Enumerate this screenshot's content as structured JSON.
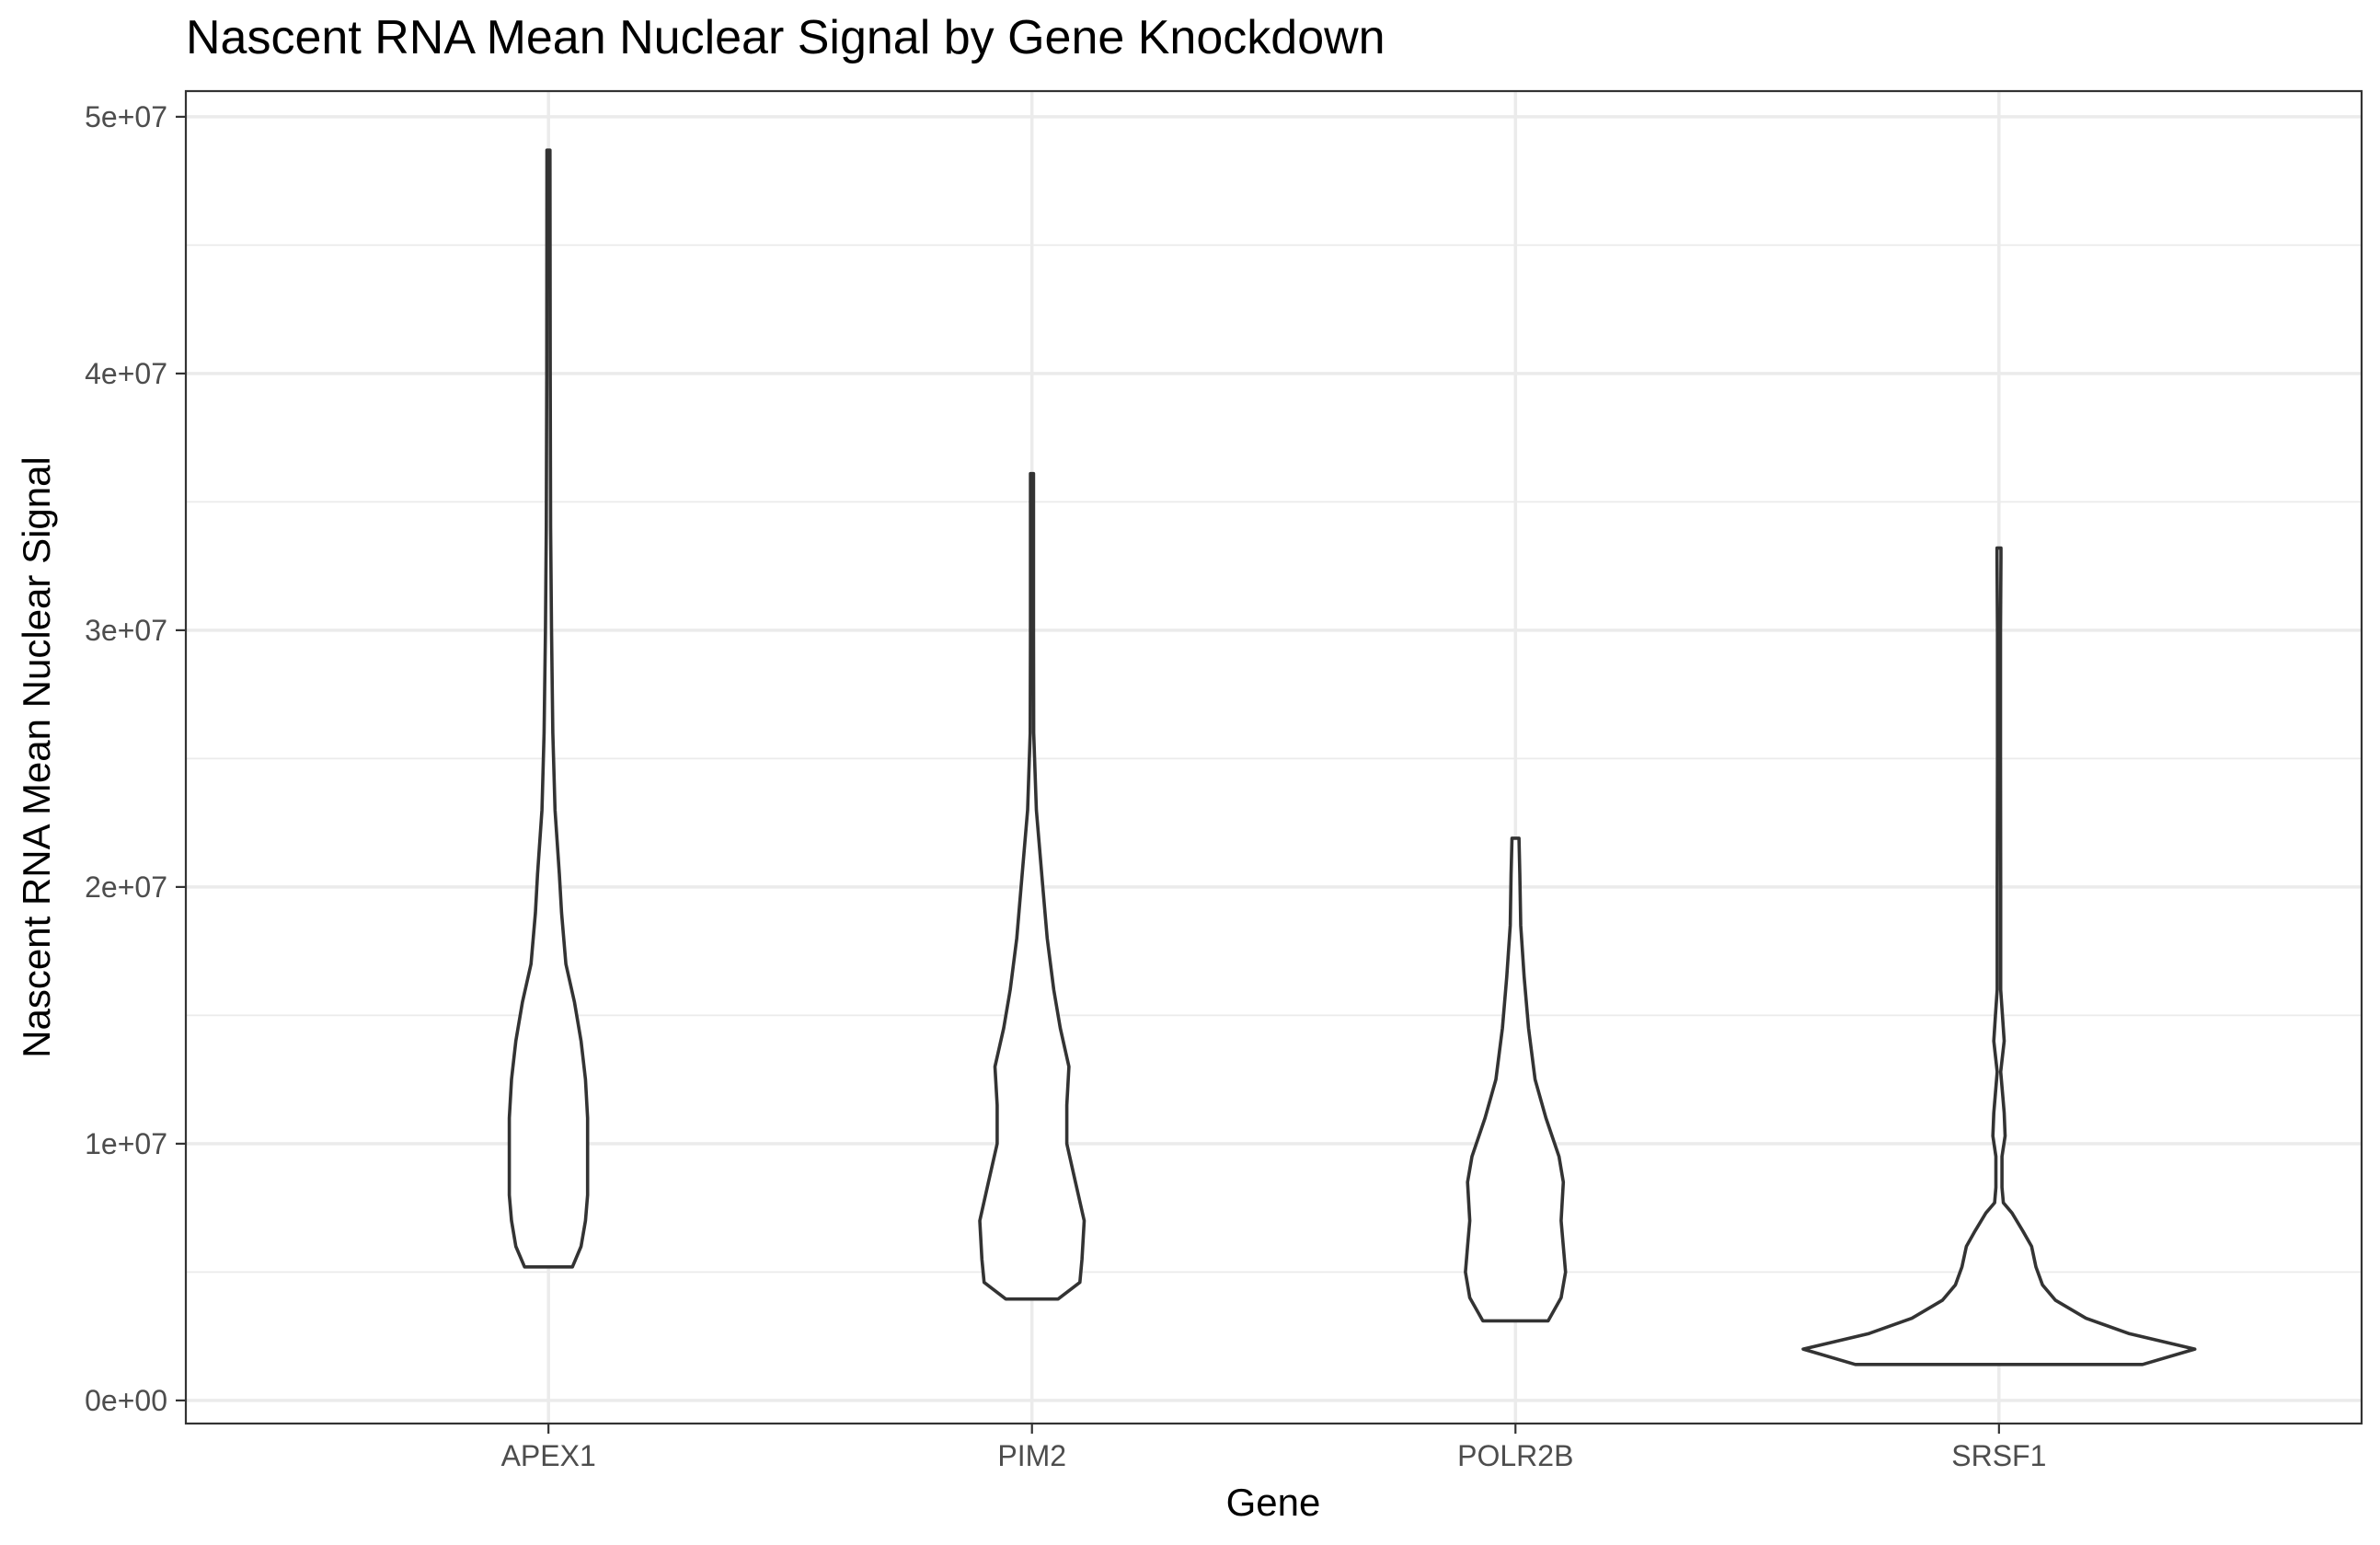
{
  "chart_data": {
    "type": "violin",
    "title": "Nascent RNA Mean Nuclear Signal by Gene Knockdown",
    "xlabel": "Gene",
    "ylabel": "Nascent RNA Mean Nuclear Signal",
    "categories": [
      "APEX1",
      "PIM2",
      "POLR2B",
      "SRSF1"
    ],
    "ylim": [
      -900000,
      51000000
    ],
    "y_ticks": [
      0,
      10000000,
      20000000,
      30000000,
      40000000,
      50000000
    ],
    "y_tick_labels": [
      "0e+00",
      "1e+07",
      "2e+07",
      "3e+07",
      "4e+07",
      "5e+07"
    ],
    "grid": true,
    "series": [
      {
        "category": "APEX1",
        "min": 5200000,
        "max": 48700000,
        "profile": [
          [
            5200000,
            0.055
          ],
          [
            6000000,
            0.075
          ],
          [
            7000000,
            0.085
          ],
          [
            8000000,
            0.09
          ],
          [
            9500000,
            0.09
          ],
          [
            11000000,
            0.09
          ],
          [
            12500000,
            0.085
          ],
          [
            14000000,
            0.075
          ],
          [
            15500000,
            0.06
          ],
          [
            17000000,
            0.04
          ],
          [
            19000000,
            0.03
          ],
          [
            20500000,
            0.025
          ],
          [
            23000000,
            0.015
          ],
          [
            26000000,
            0.01
          ],
          [
            30000000,
            0.007
          ],
          [
            34000000,
            0.005
          ],
          [
            40000000,
            0.004
          ],
          [
            48700000,
            0.0035
          ]
        ]
      },
      {
        "category": "PIM2",
        "min": 3950000,
        "max": 36100000,
        "profile": [
          [
            3950000,
            0.06
          ],
          [
            4600000,
            0.11
          ],
          [
            5500000,
            0.115
          ],
          [
            7000000,
            0.12
          ],
          [
            8500000,
            0.1
          ],
          [
            10000000,
            0.08
          ],
          [
            11500000,
            0.08
          ],
          [
            13000000,
            0.085
          ],
          [
            14500000,
            0.065
          ],
          [
            16000000,
            0.05
          ],
          [
            18000000,
            0.035
          ],
          [
            20000000,
            0.025
          ],
          [
            23000000,
            0.01
          ],
          [
            26000000,
            0.004
          ],
          [
            30000000,
            0.0035
          ],
          [
            36100000,
            0.0035
          ]
        ]
      },
      {
        "category": "POLR2B",
        "min": 3100000,
        "max": 21900000,
        "profile": [
          [
            3100000,
            0.075
          ],
          [
            4000000,
            0.105
          ],
          [
            5000000,
            0.115
          ],
          [
            6000000,
            0.11
          ],
          [
            7000000,
            0.105
          ],
          [
            8500000,
            0.11
          ],
          [
            9500000,
            0.1
          ],
          [
            11000000,
            0.07
          ],
          [
            12500000,
            0.045
          ],
          [
            14500000,
            0.03
          ],
          [
            16500000,
            0.02
          ],
          [
            18500000,
            0.012
          ],
          [
            20500000,
            0.01
          ],
          [
            21900000,
            0.008
          ]
        ]
      },
      {
        "category": "SRSF1",
        "min": 1400000,
        "max": 33200000,
        "profile": [
          [
            1400000,
            0.33
          ],
          [
            2000000,
            0.45
          ],
          [
            2600000,
            0.3
          ],
          [
            3200000,
            0.2
          ],
          [
            3900000,
            0.13
          ],
          [
            4500000,
            0.1
          ],
          [
            5200000,
            0.085
          ],
          [
            6000000,
            0.075
          ],
          [
            6600000,
            0.055
          ],
          [
            7300000,
            0.03
          ],
          [
            7700000,
            0.01
          ],
          [
            8300000,
            0.007
          ],
          [
            9500000,
            0.007
          ],
          [
            10300000,
            0.014
          ],
          [
            11200000,
            0.012
          ],
          [
            11800000,
            0.009
          ],
          [
            12800000,
            0.004
          ],
          [
            14000000,
            0.012
          ],
          [
            15000000,
            0.008
          ],
          [
            16000000,
            0.004
          ],
          [
            20000000,
            0.004
          ],
          [
            25000000,
            0.0035
          ],
          [
            30000000,
            0.0035
          ],
          [
            32800000,
            0.0045
          ],
          [
            33200000,
            0.0045
          ]
        ]
      }
    ]
  }
}
